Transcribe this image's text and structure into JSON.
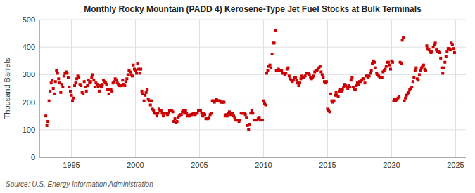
{
  "chart_data": {
    "type": "scatter",
    "title": "Monthly Rocky Mountain (PADD 4) Kerosene-Type Jet Fuel Stocks at Bulk Terminals",
    "y_label": "Thousand Barrels",
    "source": "Source: U.S. Energy Information Administration",
    "color": "#cc0000",
    "marker": "square",
    "grid": true,
    "xlim": [
      1992.5,
      2025.8
    ],
    "ylim": [
      0,
      500
    ],
    "xticks": [
      1995,
      2000,
      2005,
      2010,
      2015,
      2020,
      2025
    ],
    "yticks": [
      0,
      100,
      200,
      300,
      400,
      500
    ],
    "x": [
      1993.0,
      1993.083,
      1993.167,
      1993.25,
      1993.333,
      1993.417,
      1993.5,
      1993.583,
      1993.667,
      1993.75,
      1993.833,
      1993.917,
      1994.0,
      1994.083,
      1994.167,
      1994.25,
      1994.333,
      1994.417,
      1994.5,
      1994.583,
      1994.667,
      1994.75,
      1994.833,
      1994.917,
      1995.0,
      1995.083,
      1995.167,
      1995.25,
      1995.333,
      1995.417,
      1995.5,
      1995.583,
      1995.667,
      1995.75,
      1995.833,
      1995.917,
      1996.0,
      1996.083,
      1996.167,
      1996.25,
      1996.333,
      1996.417,
      1996.5,
      1996.583,
      1996.667,
      1996.75,
      1996.833,
      1996.917,
      1997.0,
      1997.083,
      1997.167,
      1997.25,
      1997.333,
      1997.417,
      1997.5,
      1997.583,
      1997.667,
      1997.75,
      1997.833,
      1997.917,
      1998.0,
      1998.083,
      1998.167,
      1998.25,
      1998.333,
      1998.417,
      1998.5,
      1998.583,
      1998.667,
      1998.75,
      1998.833,
      1998.917,
      1999.0,
      1999.083,
      1999.167,
      1999.25,
      1999.333,
      1999.417,
      1999.5,
      1999.583,
      1999.667,
      1999.75,
      1999.833,
      1999.917,
      2000.0,
      2000.083,
      2000.167,
      2000.25,
      2000.333,
      2000.417,
      2000.5,
      2000.583,
      2000.667,
      2000.75,
      2000.833,
      2000.917,
      2001.0,
      2001.083,
      2001.167,
      2001.25,
      2001.333,
      2001.417,
      2001.5,
      2001.583,
      2001.667,
      2001.75,
      2001.833,
      2001.917,
      2002.0,
      2002.083,
      2002.167,
      2002.25,
      2002.333,
      2002.417,
      2002.5,
      2002.583,
      2002.667,
      2002.75,
      2002.833,
      2002.917,
      2003.0,
      2003.083,
      2003.167,
      2003.25,
      2003.333,
      2003.417,
      2003.5,
      2003.583,
      2003.667,
      2003.75,
      2003.833,
      2003.917,
      2004.0,
      2004.083,
      2004.167,
      2004.25,
      2004.333,
      2004.417,
      2004.5,
      2004.583,
      2004.667,
      2004.75,
      2004.833,
      2004.917,
      2005.0,
      2005.083,
      2005.167,
      2005.25,
      2005.333,
      2005.417,
      2005.5,
      2005.583,
      2005.667,
      2005.75,
      2005.833,
      2005.917,
      2006.0,
      2006.083,
      2006.167,
      2006.25,
      2006.333,
      2006.417,
      2006.5,
      2006.583,
      2006.667,
      2006.75,
      2006.833,
      2006.917,
      2007.0,
      2007.083,
      2007.167,
      2007.25,
      2007.333,
      2007.417,
      2007.5,
      2007.583,
      2007.667,
      2007.75,
      2007.833,
      2007.917,
      2008.0,
      2008.083,
      2008.167,
      2008.25,
      2008.333,
      2008.417,
      2008.5,
      2008.583,
      2008.667,
      2008.75,
      2008.833,
      2008.917,
      2009.0,
      2009.083,
      2009.167,
      2009.25,
      2009.333,
      2009.417,
      2009.5,
      2009.583,
      2009.667,
      2009.75,
      2009.833,
      2009.917,
      2010.0,
      2010.083,
      2010.167,
      2010.25,
      2010.333,
      2010.417,
      2010.5,
      2010.583,
      2010.667,
      2010.75,
      2010.833,
      2010.917,
      2011.0,
      2011.083,
      2011.167,
      2011.25,
      2011.333,
      2011.417,
      2011.5,
      2011.583,
      2011.667,
      2011.75,
      2011.833,
      2011.917,
      2012.0,
      2012.083,
      2012.167,
      2012.25,
      2012.333,
      2012.417,
      2012.5,
      2012.583,
      2012.667,
      2012.75,
      2012.833,
      2012.917,
      2013.0,
      2013.083,
      2013.167,
      2013.25,
      2013.333,
      2013.417,
      2013.5,
      2013.583,
      2013.667,
      2013.75,
      2013.833,
      2013.917,
      2014.0,
      2014.083,
      2014.167,
      2014.25,
      2014.333,
      2014.417,
      2014.5,
      2014.583,
      2014.667,
      2014.75,
      2014.833,
      2014.917,
      2015.0,
      2015.083,
      2015.167,
      2015.25,
      2015.333,
      2015.417,
      2015.5,
      2015.583,
      2015.667,
      2015.75,
      2015.833,
      2015.917,
      2016.0,
      2016.083,
      2016.167,
      2016.25,
      2016.333,
      2016.417,
      2016.5,
      2016.583,
      2016.667,
      2016.75,
      2016.833,
      2016.917,
      2017.0,
      2017.083,
      2017.167,
      2017.25,
      2017.333,
      2017.417,
      2017.5,
      2017.583,
      2017.667,
      2017.75,
      2017.833,
      2017.917,
      2018.0,
      2018.083,
      2018.167,
      2018.25,
      2018.333,
      2018.417,
      2018.5,
      2018.583,
      2018.667,
      2018.75,
      2018.833,
      2018.917,
      2019.0,
      2019.083,
      2019.167,
      2019.25,
      2019.333,
      2019.417,
      2019.5,
      2019.583,
      2019.667,
      2019.75,
      2019.833,
      2019.917,
      2020.0,
      2020.083,
      2020.167,
      2020.25,
      2020.333,
      2020.417,
      2020.5,
      2020.583,
      2020.667,
      2020.75,
      2020.833,
      2020.917,
      2021.0,
      2021.083,
      2021.167,
      2021.25,
      2021.333,
      2021.417,
      2021.5,
      2021.583,
      2021.667,
      2021.75,
      2021.833,
      2021.917,
      2022.0,
      2022.083,
      2022.167,
      2022.25,
      2022.333,
      2022.417,
      2022.5,
      2022.583,
      2022.667,
      2022.75,
      2022.833,
      2022.917,
      2023.0,
      2023.083,
      2023.167,
      2023.25,
      2023.333,
      2023.417,
      2023.5,
      2023.583,
      2023.667,
      2023.75,
      2023.833,
      2023.917,
      2024.0,
      2024.083,
      2024.167,
      2024.25,
      2024.333,
      2024.417,
      2024.5,
      2024.583,
      2024.667,
      2024.75,
      2024.833,
      2024.917
    ],
    "values": [
      150,
      115,
      130,
      205,
      240,
      270,
      280,
      250,
      230,
      275,
      315,
      305,
      285,
      270,
      235,
      265,
      255,
      295,
      305,
      310,
      305,
      290,
      255,
      240,
      225,
      205,
      215,
      260,
      270,
      285,
      295,
      290,
      265,
      260,
      235,
      230,
      275,
      255,
      240,
      260,
      280,
      270,
      275,
      290,
      300,
      280,
      255,
      270,
      265,
      255,
      240,
      260,
      255,
      265,
      280,
      275,
      270,
      265,
      245,
      230,
      245,
      245,
      240,
      270,
      275,
      285,
      280,
      270,
      265,
      260,
      260,
      260,
      280,
      265,
      260,
      275,
      285,
      300,
      315,
      310,
      300,
      295,
      335,
      320,
      315,
      305,
      340,
      320,
      305,
      320,
      240,
      230,
      205,
      225,
      235,
      245,
      210,
      205,
      190,
      205,
      175,
      170,
      160,
      160,
      150,
      160,
      175,
      170,
      170,
      160,
      150,
      160,
      160,
      160,
      155,
      160,
      170,
      170,
      170,
      165,
      130,
      140,
      125,
      130,
      145,
      150,
      155,
      155,
      165,
      170,
      160,
      170,
      160,
      150,
      150,
      150,
      155,
      155,
      160,
      160,
      155,
      160,
      160,
      170,
      170,
      170,
      160,
      150,
      160,
      155,
      140,
      140,
      140,
      145,
      155,
      160,
      205,
      205,
      200,
      205,
      210,
      205,
      205,
      205,
      200,
      200,
      200,
      200,
      150,
      155,
      150,
      160,
      165,
      155,
      160,
      160,
      150,
      145,
      135,
      135,
      135,
      130,
      135,
      160,
      160,
      160,
      160,
      155,
      145,
      115,
      100,
      120,
      160,
      170,
      160,
      135,
      135,
      135,
      135,
      140,
      145,
      135,
      135,
      135,
      205,
      195,
      190,
      305,
      315,
      330,
      335,
      325,
      375,
      415,
      415,
      460,
      315,
      315,
      320,
      315,
      315,
      315,
      305,
      305,
      300,
      305,
      320,
      325,
      295,
      285,
      280,
      275,
      280,
      290,
      290,
      280,
      270,
      260,
      270,
      285,
      295,
      290,
      290,
      295,
      305,
      305,
      305,
      300,
      290,
      285,
      290,
      295,
      310,
      315,
      315,
      320,
      325,
      330,
      310,
      300,
      290,
      275,
      270,
      275,
      175,
      170,
      165,
      230,
      205,
      200,
      205,
      225,
      235,
      225,
      220,
      240,
      245,
      240,
      245,
      255,
      265,
      260,
      255,
      250,
      260,
      255,
      280,
      290,
      255,
      245,
      245,
      260,
      270,
      265,
      275,
      275,
      280,
      285,
      285,
      270,
      295,
      295,
      290,
      295,
      305,
      315,
      340,
      350,
      345,
      325,
      305,
      300,
      295,
      290,
      290,
      290,
      310,
      315,
      320,
      330,
      345,
      345,
      335,
      320,
      350,
      345,
      205,
      210,
      205,
      210,
      215,
      220,
      345,
      340,
      425,
      435,
      205,
      215,
      225,
      230,
      235,
      245,
      250,
      255,
      275,
      290,
      315,
      325,
      285,
      280,
      300,
      315,
      325,
      330,
      335,
      320,
      315,
      405,
      395,
      390,
      385,
      380,
      385,
      400,
      410,
      415,
      390,
      385,
      385,
      380,
      360,
      325,
      305,
      325,
      345,
      365,
      385,
      395,
      395,
      390,
      415,
      410,
      395,
      380
    ]
  }
}
